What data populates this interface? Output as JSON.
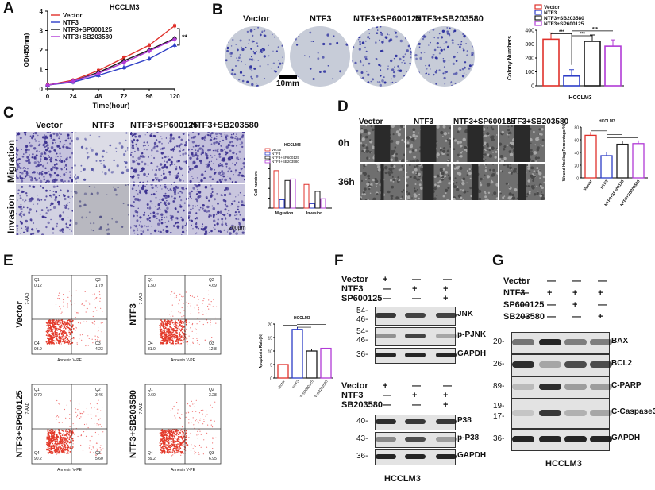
{
  "panels": {
    "A": {
      "letter": "A"
    },
    "B": {
      "letter": "B"
    },
    "C": {
      "letter": "C"
    },
    "D": {
      "letter": "D"
    },
    "E": {
      "letter": "E"
    },
    "F": {
      "letter": "F"
    },
    "G": {
      "letter": "G"
    }
  },
  "groups": [
    "Vector",
    "NTF3",
    "NTF3+SP600125",
    "NTF3+SB203580"
  ],
  "colors": {
    "vector": "#e0312b",
    "ntf3": "#2d3dc7",
    "sp": "#1a1a1a",
    "sb": "#b13ad6"
  },
  "chart_data": [
    {
      "id": "A",
      "type": "line",
      "title": "HCCLM3",
      "xlabel": "Time(hour)",
      "ylabel": "OD(450nm)",
      "x": [
        0,
        24,
        48,
        72,
        96,
        120
      ],
      "ylim": [
        0,
        4
      ],
      "yticks": [
        0,
        1,
        2,
        3,
        4
      ],
      "series": [
        {
          "name": "Vector",
          "values": [
            0.2,
            0.45,
            0.95,
            1.6,
            2.25,
            3.25
          ]
        },
        {
          "name": "NTF3",
          "values": [
            0.2,
            0.35,
            0.7,
            1.1,
            1.55,
            2.25
          ]
        },
        {
          "name": "NTF3+SP600125",
          "values": [
            0.2,
            0.4,
            0.85,
            1.45,
            2.0,
            2.6
          ]
        },
        {
          "name": "NTF3+SB203580",
          "values": [
            0.2,
            0.4,
            0.8,
            1.35,
            1.95,
            2.55
          ]
        }
      ],
      "annotation": "**"
    },
    {
      "id": "B",
      "type": "bar",
      "xlabel": "HCCLM3",
      "ylabel": "Colony Numbers",
      "categories": [
        "Vector",
        "NTF3",
        "NTF3+SB203580",
        "NTF3+SP600125"
      ],
      "values": [
        335,
        70,
        320,
        285
      ],
      "ylim": [
        0,
        400
      ],
      "yticks": [
        0,
        100,
        200,
        300,
        400
      ],
      "legend": [
        "Vector",
        "NTF3",
        "NTF3+SB203580",
        "NTF3+SP600125"
      ],
      "annotations": [
        "***",
        "***",
        "***"
      ]
    },
    {
      "id": "C",
      "type": "bar",
      "title": "HCCLM3",
      "ylabel": "Cell numbers",
      "categories": [
        "Migration",
        "Invasion"
      ],
      "series": [
        {
          "name": "Vector",
          "values": [
            760,
            480
          ]
        },
        {
          "name": "NTF3",
          "values": [
            170,
            90
          ]
        },
        {
          "name": "NTF3+SP600125",
          "values": [
            560,
            340
          ]
        },
        {
          "name": "NTF3+SB203580",
          "values": [
            590,
            190
          ]
        }
      ],
      "ylim": [
        0,
        1000
      ]
    },
    {
      "id": "D",
      "type": "bar",
      "title": "HCCLM3",
      "ylabel": "Wound Healing Percentage(%)",
      "categories": [
        "Vector",
        "NTF3",
        "NTF3+SP600125",
        "NTF3+SB203580"
      ],
      "values": [
        67,
        35,
        53,
        54
      ],
      "ylim": [
        0,
        80
      ],
      "yticks": [
        0,
        20,
        40,
        60,
        80
      ]
    },
    {
      "id": "E",
      "type": "bar",
      "title": "HCCLM3",
      "ylabel": "Apoptosis Rate(%)",
      "categories": [
        "Vector",
        "NTF3",
        "NTF3+SP600125",
        "NTF3+SB203580"
      ],
      "values": [
        5,
        18,
        10,
        11
      ],
      "ylim": [
        0,
        20
      ],
      "yticks": [
        0,
        5,
        10,
        15,
        20
      ]
    }
  ],
  "B_panel": {
    "scale": "10mm",
    "labels": [
      "Vector",
      "NTF3",
      "NTF3+SP600125",
      "NTF3+SB203580"
    ]
  },
  "C_panel": {
    "rows": [
      "Migration",
      "Invasion"
    ],
    "scale": "200μm"
  },
  "D_panel": {
    "rows": [
      "0h",
      "36h"
    ],
    "scale": "200μm"
  },
  "E_panel": {
    "xaxis": "Annexin V-PE",
    "yaxis": "7-AAD",
    "plots": [
      {
        "label": "Vector",
        "q1": "0.12",
        "q2": "1.79",
        "q3": "4.23",
        "q4": "93.9"
      },
      {
        "label": "NTF3",
        "q1": "1.50",
        "q2": "4.69",
        "q3": "12.8",
        "q4": "81.0"
      },
      {
        "label": "NTF3+SP600125",
        "q1": "0.70",
        "q2": "3.46",
        "q3": "5.60",
        "q4": "90.2"
      },
      {
        "label": "NTF3+SB203580",
        "q1": "0.60",
        "q2": "3.28",
        "q3": "6.95",
        "q4": "89.2"
      }
    ]
  },
  "F_panel": {
    "top_conditions": [
      {
        "name": "Vector",
        "marks": [
          "+",
          "—",
          "—"
        ]
      },
      {
        "name": "NTF3",
        "marks": [
          "—",
          "+",
          "+"
        ]
      },
      {
        "name": "SP600125",
        "marks": [
          "—",
          "—",
          "+"
        ]
      }
    ],
    "top_blots": [
      {
        "mw": [
          "54-",
          "46-"
        ],
        "label": "JNK"
      },
      {
        "mw": [
          "54-",
          "46-"
        ],
        "label": "p-PJNK"
      },
      {
        "mw": [
          "36-"
        ],
        "label": "GAPDH"
      }
    ],
    "bottom_conditions": [
      {
        "name": "Vector",
        "marks": [
          "+",
          "—",
          "—"
        ]
      },
      {
        "name": "NTF3",
        "marks": [
          "—",
          "+",
          "+"
        ]
      },
      {
        "name": "SB203580",
        "marks": [
          "—",
          "—",
          "+"
        ]
      }
    ],
    "bottom_blots": [
      {
        "mw": [
          "40-"
        ],
        "label": "P38"
      },
      {
        "mw": [
          "43-"
        ],
        "label": "p-P38"
      },
      {
        "mw": [
          "36-"
        ],
        "label": "GAPDH"
      }
    ],
    "caption": "HCCLM3"
  },
  "G_panel": {
    "conditions": [
      {
        "name": "Vector",
        "marks": [
          "+",
          "—",
          "—",
          "—"
        ]
      },
      {
        "name": "NTF3",
        "marks": [
          "—",
          "+",
          "+",
          "+"
        ]
      },
      {
        "name": "SP600125",
        "marks": [
          "—",
          "—",
          "+",
          "—"
        ]
      },
      {
        "name": "SB203580",
        "marks": [
          "—",
          "—",
          "—",
          "+"
        ]
      }
    ],
    "blots": [
      {
        "mw": [
          "20-"
        ],
        "label": "BAX"
      },
      {
        "mw": [
          "26-"
        ],
        "label": "BCL2"
      },
      {
        "mw": [
          "89-"
        ],
        "label": "C-PARP"
      },
      {
        "mw": [
          "19-",
          "17-"
        ],
        "label": "C-Caspase3"
      },
      {
        "mw": [
          "36-"
        ],
        "label": "GAPDH"
      }
    ],
    "caption": "HCCLM3"
  }
}
